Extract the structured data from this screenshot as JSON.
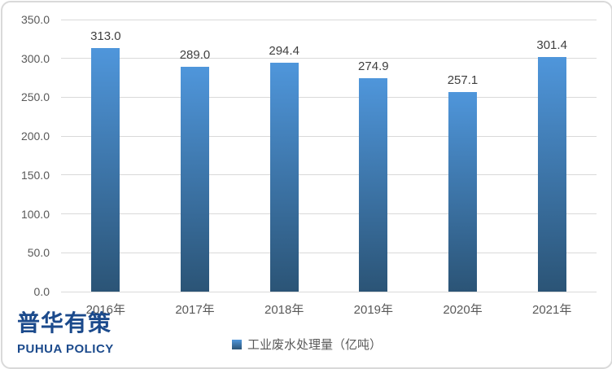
{
  "chart_data": {
    "type": "bar",
    "title": "",
    "xlabel": "",
    "ylabel": "",
    "categories": [
      "2016年",
      "2017年",
      "2018年",
      "2019年",
      "2020年",
      "2021年"
    ],
    "values": [
      313.0,
      289.0,
      294.4,
      274.9,
      257.1,
      301.4
    ],
    "data_labels": [
      "313.0",
      "289.0",
      "294.4",
      "274.9",
      "257.1",
      "301.4"
    ],
    "ylim": [
      0,
      350
    ],
    "ytick_step": 50,
    "ytick_labels": [
      "0.0",
      "50.0",
      "100.0",
      "150.0",
      "200.0",
      "250.0",
      "300.0",
      "350.0"
    ],
    "grid": true,
    "legend_position": "bottom",
    "series": [
      {
        "name": "工业废水处理量（亿吨）",
        "values": [
          313.0,
          289.0,
          294.4,
          274.9,
          257.1,
          301.4
        ]
      }
    ]
  },
  "legend": {
    "label": "工业废水处理量（亿吨）"
  },
  "logo": {
    "cn": "普华有策",
    "en": "PUHUA POLICY"
  },
  "colors": {
    "bar_top": "#4F96DB",
    "bar_bottom": "#2B5476",
    "grid": "#D9D9D9",
    "axis_text": "#595959",
    "data_label": "#3F3F3F",
    "logo_blue": "#1B4A8C",
    "border": "#D9D9D9"
  }
}
